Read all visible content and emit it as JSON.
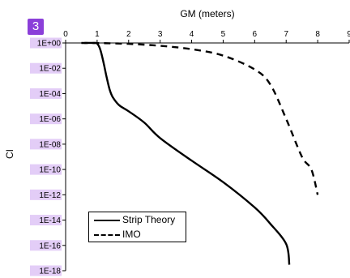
{
  "badge": "3",
  "chart_data": {
    "type": "line",
    "title": "",
    "xlabel": "GM (meters)",
    "ylabel": "CI",
    "x_axis_position": "top",
    "xlim": [
      0,
      9
    ],
    "x_ticks": [
      "0",
      "1",
      "2",
      "3",
      "4",
      "5",
      "6",
      "7",
      "8",
      "9"
    ],
    "ylim": [
      1e-18,
      1
    ],
    "y_scale": "log",
    "y_ticks": [
      "1E+00",
      "1E-02",
      "1E-04",
      "1E-06",
      "1E-08",
      "1E-10",
      "1E-12",
      "1E-14",
      "1E-16",
      "1E-18"
    ],
    "y_tick_highlight": "#e3cdf7",
    "grid": false,
    "legend": "bottom-left",
    "series": [
      {
        "name": "Strip Theory",
        "style": "solid",
        "color": "#000000",
        "x": [
          0.6,
          0.9,
          1.0,
          1.1,
          1.2,
          1.3,
          1.4,
          1.5,
          1.7,
          2.0,
          2.5,
          3.0,
          4.0,
          5.0,
          6.0,
          6.5,
          7.0,
          7.1
        ],
        "y": [
          1,
          1,
          0.9,
          0.3,
          0.03,
          0.002,
          0.0002,
          5e-05,
          1.2e-05,
          4e-06,
          5e-07,
          3e-08,
          5e-10,
          1e-11,
          1e-13,
          5e-15,
          1.3e-16,
          3e-18
        ]
      },
      {
        "name": "IMO",
        "style": "dashed",
        "color": "#000000",
        "x": [
          0.5,
          1.0,
          2.0,
          3.0,
          4.0,
          5.0,
          6.0,
          6.5,
          7.0,
          7.5,
          7.8,
          8.0
        ],
        "y": [
          1,
          0.98,
          0.85,
          0.6,
          0.32,
          0.1,
          0.008,
          0.0005,
          1e-06,
          1e-09,
          1e-10,
          1e-12
        ]
      }
    ]
  }
}
